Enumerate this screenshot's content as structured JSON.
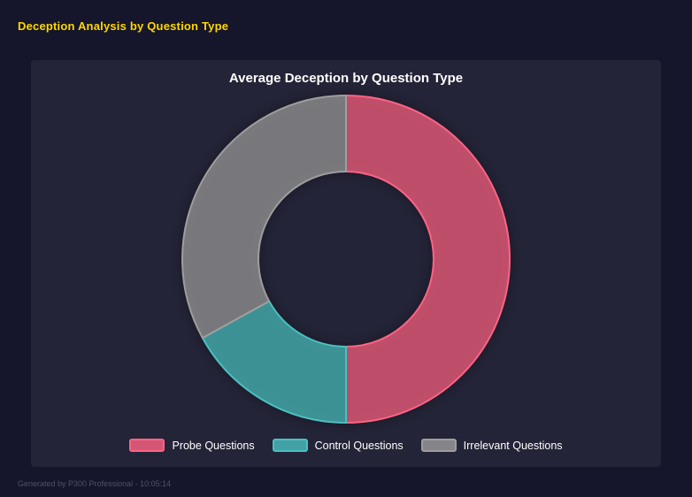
{
  "header": {
    "title": "Deception Analysis by Question Type"
  },
  "footer": {
    "text": "Generated by P300 Professional - 10:05:14"
  },
  "theme": {
    "page_bg": "#15152b",
    "panel_bg": "#242438",
    "header_color": "#ffd700",
    "title_color": "#ffffff",
    "legend_text_color": "#ffffff",
    "footer_color": "#50506a"
  },
  "chart_data": {
    "type": "pie",
    "variant": "doughnut",
    "title": "Average Deception by Question Type",
    "labels": [
      "Probe Questions",
      "Control Questions",
      "Irrelevant Questions"
    ],
    "values": [
      50,
      17,
      33
    ],
    "unit": "percent-of-circle (estimated from arc angles)",
    "colors": [
      "#ff6384",
      "#4bc0c0",
      "#9e9e9e"
    ],
    "fill_opacity": 0.72,
    "border_width": 2,
    "hole_ratio": 0.535,
    "start_angle_deg": 0,
    "direction": "clockwise",
    "legend_position": "bottom",
    "grid": false
  }
}
